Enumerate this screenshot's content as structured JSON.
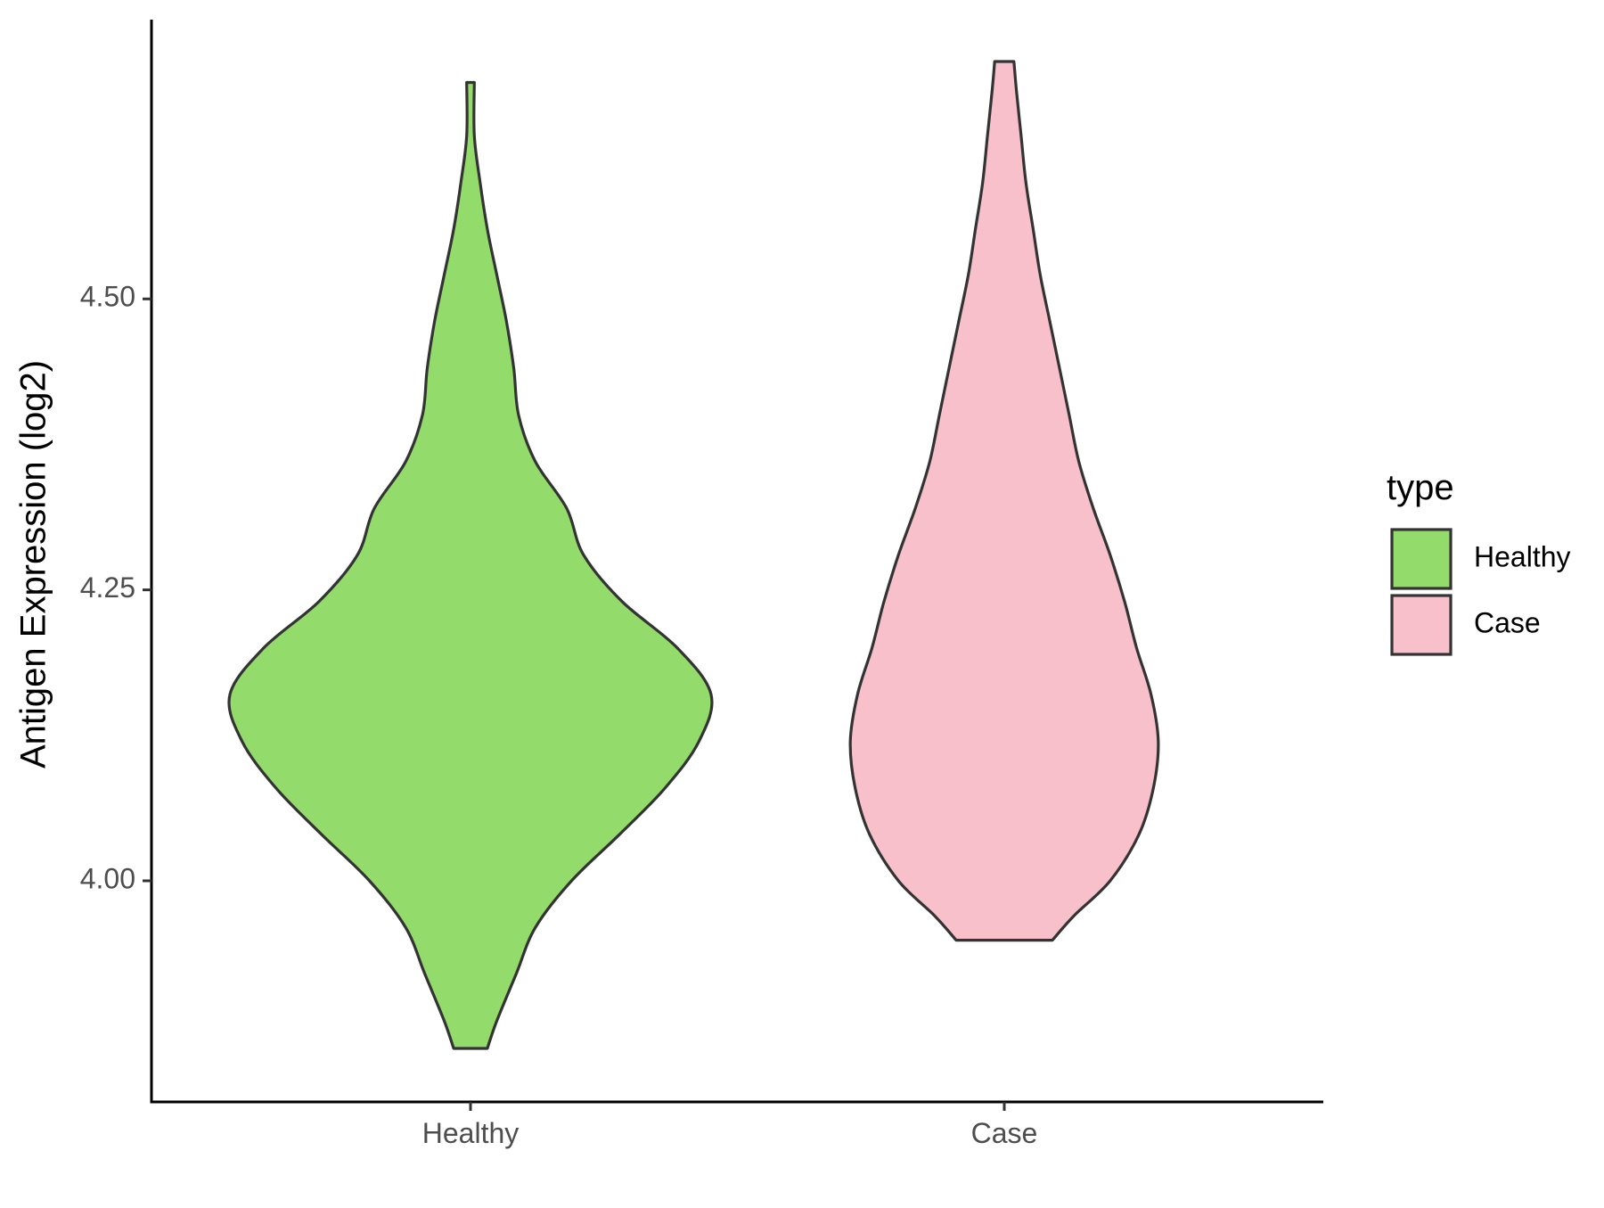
{
  "chart_data": {
    "type": "violin",
    "title": "",
    "xlabel": "",
    "ylabel": "Antigen Expression (log2)",
    "categories": [
      "Healthy",
      "Case"
    ],
    "ylim": [
      3.81,
      4.74
    ],
    "yticks": [
      4.0,
      4.25,
      4.5
    ],
    "ytick_labels": [
      "4.00",
      "4.25",
      "4.50"
    ],
    "grid": false,
    "legend": {
      "title": "type",
      "position": "right",
      "entries": [
        {
          "label": "Healthy",
          "color": "#93DC6B"
        },
        {
          "label": "Case",
          "color": "#F7C0CB"
        }
      ]
    },
    "series": [
      {
        "category": "Healthy",
        "color": "#93DC6B",
        "min": 3.856,
        "max": 4.686,
        "density_profile": [
          [
            3.856,
            0.07
          ],
          [
            3.88,
            0.11
          ],
          [
            3.92,
            0.19
          ],
          [
            3.96,
            0.27
          ],
          [
            4.0,
            0.42
          ],
          [
            4.04,
            0.62
          ],
          [
            4.08,
            0.81
          ],
          [
            4.12,
            0.95
          ],
          [
            4.16,
            1.0
          ],
          [
            4.2,
            0.86
          ],
          [
            4.24,
            0.63
          ],
          [
            4.28,
            0.47
          ],
          [
            4.32,
            0.4
          ],
          [
            4.36,
            0.27
          ],
          [
            4.4,
            0.2
          ],
          [
            4.44,
            0.18
          ],
          [
            4.48,
            0.15
          ],
          [
            4.52,
            0.11
          ],
          [
            4.56,
            0.07
          ],
          [
            4.6,
            0.04
          ],
          [
            4.64,
            0.016
          ],
          [
            4.686,
            0.016
          ]
        ]
      },
      {
        "category": "Case",
        "color": "#F7C0CB",
        "min": 3.949,
        "max": 4.704,
        "density_profile": [
          [
            3.949,
            0.2
          ],
          [
            3.97,
            0.29
          ],
          [
            4.0,
            0.44
          ],
          [
            4.04,
            0.56
          ],
          [
            4.08,
            0.62
          ],
          [
            4.12,
            0.64
          ],
          [
            4.16,
            0.61
          ],
          [
            4.2,
            0.55
          ],
          [
            4.24,
            0.5
          ],
          [
            4.28,
            0.44
          ],
          [
            4.32,
            0.37
          ],
          [
            4.36,
            0.31
          ],
          [
            4.4,
            0.27
          ],
          [
            4.44,
            0.23
          ],
          [
            4.48,
            0.19
          ],
          [
            4.52,
            0.15
          ],
          [
            4.56,
            0.12
          ],
          [
            4.6,
            0.09
          ],
          [
            4.64,
            0.07
          ],
          [
            4.68,
            0.05
          ],
          [
            4.704,
            0.04
          ]
        ]
      }
    ]
  }
}
